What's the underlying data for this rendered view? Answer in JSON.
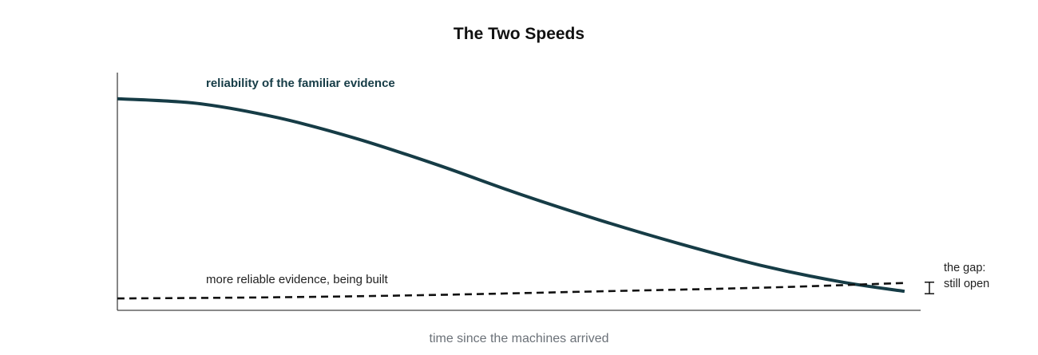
{
  "chart_data": {
    "type": "line",
    "title": "The Two Speeds",
    "xlabel": "time since the machines arrived",
    "ylabel": "",
    "xlim": [
      0,
      100
    ],
    "ylim": [
      0,
      100
    ],
    "grid": false,
    "series": [
      {
        "name": "reliability of the familiar evidence",
        "style": "solid",
        "color": "#163c46",
        "x": [
          0,
          10,
          20,
          30,
          40,
          50,
          60,
          70,
          80,
          90,
          98
        ],
        "y": [
          89,
          87,
          81,
          72,
          61,
          49,
          38,
          28,
          19,
          12,
          8
        ]
      },
      {
        "name": "more reliable evidence, being built",
        "style": "dashed",
        "color": "#111111",
        "x": [
          0,
          20,
          40,
          60,
          80,
          98
        ],
        "y": [
          5,
          5.5,
          6.5,
          8,
          9.5,
          11.5
        ]
      }
    ],
    "annotations": [
      {
        "text_lines": [
          "the gap:",
          "still open"
        ],
        "at_x": 98
      }
    ]
  }
}
